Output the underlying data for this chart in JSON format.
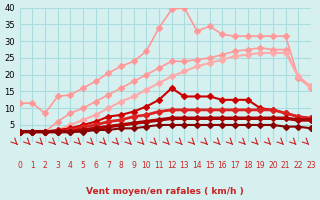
{
  "x": [
    0,
    1,
    2,
    3,
    4,
    5,
    6,
    7,
    8,
    9,
    10,
    11,
    12,
    13,
    14,
    15,
    16,
    17,
    18,
    19,
    20,
    21,
    22,
    23
  ],
  "series": [
    {
      "name": "line1_light_pink_high",
      "color": "#ff9999",
      "linewidth": 1.2,
      "markersize": 3,
      "values": [
        11.5,
        11.5,
        8.5,
        13.5,
        14.0,
        16.0,
        18.0,
        20.5,
        22.5,
        24.0,
        27.0,
        34.0,
        39.5,
        40.0,
        33.0,
        34.5,
        32.0,
        31.5,
        31.5,
        31.5,
        31.5,
        31.5,
        19.0,
        16.0
      ]
    },
    {
      "name": "line2_light_pink_mid",
      "color": "#ff9999",
      "linewidth": 1.2,
      "markersize": 3,
      "values": [
        3.0,
        3.0,
        3.0,
        6.0,
        8.5,
        10.0,
        12.0,
        14.0,
        16.0,
        18.0,
        20.0,
        22.0,
        24.0,
        24.0,
        24.5,
        25.0,
        26.0,
        27.0,
        27.5,
        28.0,
        27.5,
        27.5,
        19.0,
        16.5
      ]
    },
    {
      "name": "line3_light_pink_lower",
      "color": "#ffaaaa",
      "linewidth": 1.5,
      "markersize": 3,
      "values": [
        3.0,
        3.0,
        3.0,
        3.5,
        5.0,
        6.5,
        8.0,
        10.0,
        12.0,
        13.5,
        15.5,
        17.5,
        19.5,
        21.0,
        22.5,
        23.5,
        24.5,
        25.5,
        26.0,
        26.5,
        26.5,
        26.5,
        19.5,
        16.5
      ]
    },
    {
      "name": "line4_red_mid",
      "color": "#cc0000",
      "linewidth": 1.5,
      "markersize": 3,
      "values": [
        3.0,
        3.0,
        3.0,
        3.5,
        4.0,
        5.0,
        6.0,
        7.5,
        8.0,
        9.0,
        10.5,
        12.5,
        16.0,
        13.5,
        13.5,
        13.5,
        12.5,
        12.5,
        12.5,
        10.0,
        9.5,
        8.5,
        7.5,
        7.0
      ]
    },
    {
      "name": "line5_red_lower",
      "color": "#dd2222",
      "linewidth": 2.0,
      "markersize": 3,
      "values": [
        3.0,
        3.0,
        3.0,
        3.0,
        3.5,
        4.5,
        5.0,
        6.0,
        6.5,
        7.5,
        8.0,
        9.0,
        9.5,
        9.5,
        9.5,
        9.5,
        9.5,
        9.5,
        9.5,
        9.5,
        9.5,
        8.5,
        7.5,
        7.0
      ]
    },
    {
      "name": "line6_dark_red_flat",
      "color": "#aa0000",
      "linewidth": 2.5,
      "markersize": 3,
      "values": [
        3.0,
        3.0,
        3.0,
        3.0,
        3.0,
        3.5,
        4.0,
        4.5,
        5.0,
        5.5,
        6.0,
        6.5,
        7.0,
        7.0,
        7.0,
        7.0,
        7.0,
        7.0,
        7.0,
        7.0,
        7.0,
        7.0,
        6.5,
        6.5
      ]
    },
    {
      "name": "line7_darkest_red_flat",
      "color": "#880000",
      "linewidth": 1.5,
      "markersize": 3,
      "values": [
        3.0,
        3.0,
        3.0,
        3.0,
        3.0,
        3.0,
        3.5,
        3.5,
        4.0,
        4.0,
        4.5,
        5.0,
        5.0,
        5.0,
        5.0,
        5.0,
        5.0,
        5.0,
        5.0,
        5.0,
        5.0,
        4.5,
        4.5,
        4.0
      ]
    }
  ],
  "xlabel": "Vent moyen/en rafales ( km/h )",
  "ylabel": "",
  "xlim": [
    0,
    23
  ],
  "ylim": [
    0,
    40
  ],
  "yticks": [
    0,
    5,
    10,
    15,
    20,
    25,
    30,
    35,
    40
  ],
  "xticks": [
    0,
    1,
    2,
    3,
    4,
    5,
    6,
    7,
    8,
    9,
    10,
    11,
    12,
    13,
    14,
    15,
    16,
    17,
    18,
    19,
    20,
    21,
    22,
    23
  ],
  "bg_color": "#d6f0f0",
  "grid_color": "#aadddd",
  "arrow_color": "#cc2222",
  "title_color": "#cc2222"
}
